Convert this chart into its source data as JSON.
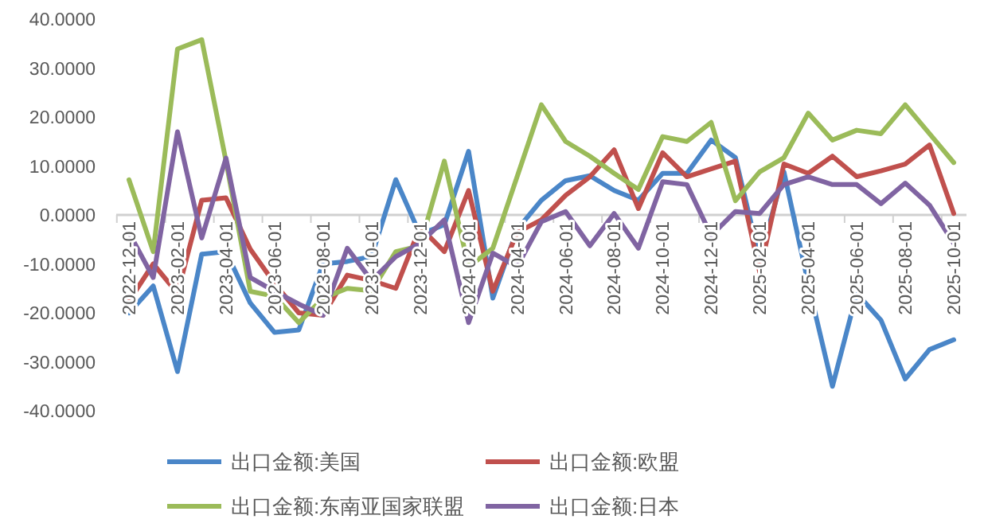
{
  "chart_data": {
    "type": "line",
    "categories": [
      "2022-12-01",
      null,
      "2023-02-01",
      null,
      "2023-04-01",
      null,
      "2023-06-01",
      null,
      "2023-08-01",
      null,
      "2023-10-01",
      null,
      "2023-12-01",
      null,
      "2024-02-01",
      null,
      "2024-04-01",
      null,
      "2024-06-01",
      null,
      "2024-08-01",
      null,
      "2024-10-01",
      null,
      "2024-12-01",
      null,
      "2025-02-01",
      null,
      "2025-04-01",
      null,
      "2025-06-01",
      null,
      "2025-08-01",
      null,
      "2025-10-01"
    ],
    "ylim": [
      -40,
      40
    ],
    "yticks": [
      {
        "value": -40,
        "label": "-40.0000"
      },
      {
        "value": -30,
        "label": "-30.0000"
      },
      {
        "value": -20,
        "label": "-20.0000"
      },
      {
        "value": -10,
        "label": "-10.0000"
      },
      {
        "value": 0,
        "label": "0.0000"
      },
      {
        "value": 10,
        "label": "10.0000"
      },
      {
        "value": 20,
        "label": "20.0000"
      },
      {
        "value": 30,
        "label": "30.0000"
      },
      {
        "value": 40,
        "label": "40.0000"
      }
    ],
    "grid": false,
    "legend": "bottom",
    "series": [
      {
        "name": "出口金额:美国",
        "color": "#4a86c8",
        "values": [
          -20,
          -14.5,
          -32,
          -8,
          -7.5,
          -18,
          -24,
          -23.5,
          -10,
          -9.5,
          -8.5,
          7.2,
          -4,
          -2,
          13,
          -17,
          -3,
          3,
          7,
          8,
          5,
          3,
          8.5,
          8.5,
          15.3,
          11.7,
          -9,
          8.8,
          -14,
          -35,
          -16,
          -21.5,
          -33.5,
          -27.5,
          -25.5
        ]
      },
      {
        "name": "出口金额:欧盟",
        "color": "#c0504d",
        "values": [
          -17.6,
          -10,
          -16,
          3,
          3.5,
          -7,
          -14,
          -20,
          -20.5,
          -12.3,
          -13.4,
          -15,
          -2.5,
          -7.5,
          5,
          -15.6,
          -3.6,
          -1,
          4,
          7.8,
          13.3,
          1.3,
          12.7,
          7.8,
          9.4,
          11,
          -11.7,
          10.4,
          8.5,
          12,
          7.8,
          9,
          10.4,
          14.3,
          0.3
        ]
      },
      {
        "name": "出口金额:东南亚国家联盟",
        "color": "#9bbb59",
        "values": [
          7.2,
          -7.5,
          33.9,
          35.8,
          11,
          -15.6,
          -16.6,
          -22,
          -17,
          -15,
          -15.5,
          -7.5,
          -6.3,
          11,
          -10.6,
          -6.8,
          7.8,
          22.5,
          15,
          12,
          8.5,
          5.2,
          16,
          15,
          18.9,
          2.9,
          8.8,
          11.7,
          20.8,
          15.3,
          17.3,
          16.6,
          22.5,
          16.6,
          10.7
        ]
      },
      {
        "name": "出口金额:日本",
        "color": "#8064a2",
        "values": [
          -3.6,
          -12.8,
          17,
          -4.7,
          11.6,
          -12.8,
          -15.6,
          -18.2,
          -20.5,
          -6.8,
          -13.4,
          -8.5,
          -5.8,
          -1,
          -22,
          -7.8,
          -10.6,
          -1.4,
          0.7,
          -6.3,
          0.3,
          -6.8,
          6.8,
          6.2,
          -4.2,
          0.7,
          0.3,
          6.2,
          7.8,
          6.2,
          6.2,
          2.3,
          6.5,
          2,
          -5.8
        ]
      }
    ]
  }
}
